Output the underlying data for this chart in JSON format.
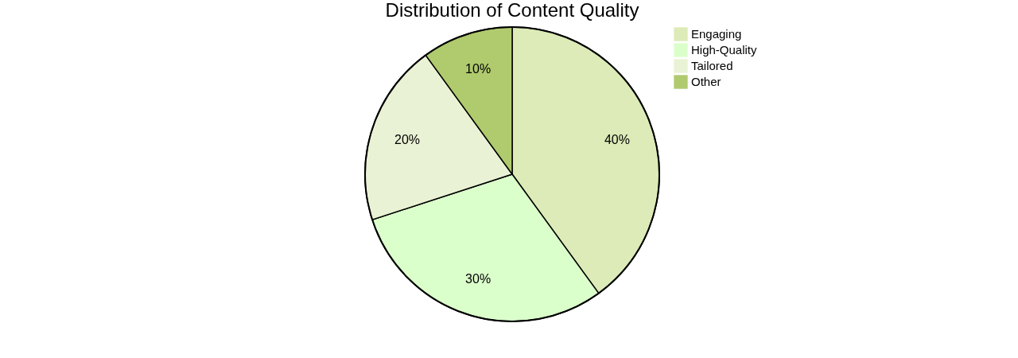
{
  "chart_data": {
    "type": "pie",
    "title": "Distribution of Content Quality",
    "categories": [
      "Engaging",
      "High-Quality",
      "Tailored",
      "Other"
    ],
    "values": [
      40,
      30,
      20,
      10
    ],
    "value_labels": [
      "40%",
      "30%",
      "20%",
      "10%"
    ],
    "colors": [
      "#dcebb7",
      "#dbffcb",
      "#e9f2d4",
      "#b0ca6e"
    ],
    "legend": "right"
  }
}
